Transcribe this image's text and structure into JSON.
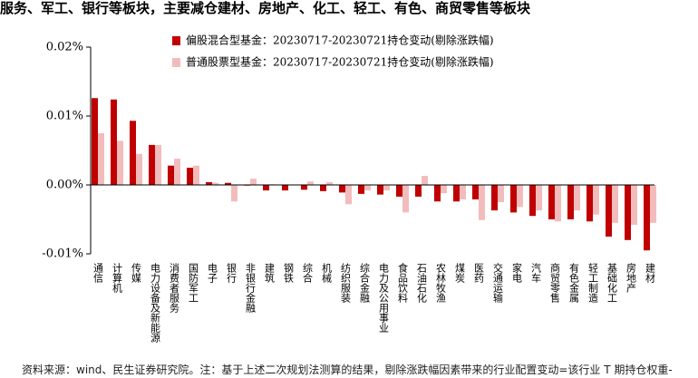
{
  "header_text": "服务、军工、银行等板块，主要减仓建材、房地产、化工、轻工、有色、商贸零售等板块",
  "source": "资料来源：wind、民生证券研究院。注：基于上述二次规划法测算的结果，剔除涨跌幅因素带来的行业配置变动=该行业 T 期持仓权重-",
  "chart_data": {
    "type": "bar",
    "categories": [
      "通信",
      "计算机",
      "传媒",
      "电力设备及新能源",
      "消费者服务",
      "国防军工",
      "电子",
      "银行",
      "非银行金融",
      "建筑",
      "钢铁",
      "综合",
      "机械",
      "纺织服装",
      "综合金融",
      "电力及公用事业",
      "食品饮料",
      "石油石化",
      "农林牧渔",
      "煤炭",
      "医药",
      "交通运输",
      "家电",
      "汽车",
      "商贸零售",
      "有色金属",
      "轻工制造",
      "基础化工",
      "房地产",
      "建材"
    ],
    "series": [
      {
        "name": "偏股混合型基金：20230717-20230721持仓变动(剔除涨跌幅)",
        "color": "#c00000",
        "values": [
          0.0126,
          0.0124,
          0.0093,
          0.0058,
          0.0028,
          0.0025,
          0.0004,
          0.0003,
          -0.0001,
          -0.0008,
          -0.0008,
          -0.0007,
          -0.0009,
          -0.0011,
          -0.0013,
          -0.0014,
          -0.0017,
          -0.0017,
          -0.0024,
          -0.0024,
          -0.0021,
          -0.0037,
          -0.004,
          -0.0045,
          -0.005,
          -0.005,
          -0.0053,
          -0.0075,
          -0.008,
          -0.0095
        ]
      },
      {
        "name": "普通股票型基金：20230717-20230721持仓变动(剔除涨跌幅)",
        "color": "#f2bcbc",
        "values": [
          0.0075,
          0.0064,
          0.0045,
          0.0058,
          0.0038,
          0.0028,
          0.0003,
          -0.0024,
          0.0009,
          0.0001,
          0,
          0.0005,
          0.0004,
          -0.0028,
          -0.0008,
          -0.0008,
          -0.004,
          0.0013,
          -0.0012,
          -0.0021,
          -0.0051,
          -0.0025,
          -0.0032,
          -0.0037,
          -0.0053,
          -0.0037,
          -0.0043,
          -0.0055,
          -0.0058,
          -0.0055
        ]
      }
    ],
    "ylim": [
      -0.01,
      0.02
    ],
    "yticks": [
      {
        "value": -0.01,
        "label": "-0.01%"
      },
      {
        "value": 0,
        "label": "0.00%"
      },
      {
        "value": 0.01,
        "label": "0.01%"
      },
      {
        "value": 0.02,
        "label": "0.02%"
      }
    ],
    "legend": "top"
  }
}
